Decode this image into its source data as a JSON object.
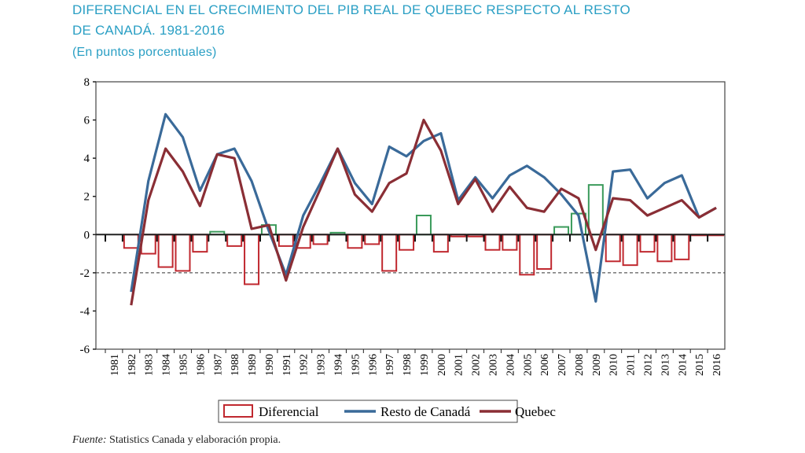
{
  "title_line1": "DIFERENCIAL EN EL CRECIMIENTO DEL PIB REAL DE QUEBEC RESPECTO AL RESTO",
  "title_line2": "DE CANADÁ. 1981-2016",
  "subtitle": "(En puntos porcentuales)",
  "source_label": "Fuente:",
  "source_text": " Statistics Canada y elaboración propia.",
  "chart_data": {
    "type": "line+bar",
    "categories": [
      "1981",
      "1982",
      "1983",
      "1984",
      "1985",
      "1986",
      "1987",
      "1988",
      "1989",
      "1990",
      "1991",
      "1992",
      "1993",
      "1994",
      "1995",
      "1996",
      "1997",
      "1998",
      "1999",
      "2000",
      "2001",
      "2002",
      "2003",
      "2004",
      "2005",
      "2006",
      "2007",
      "2008",
      "2009",
      "2010",
      "2011",
      "2012",
      "2013",
      "2014",
      "2015",
      "2016"
    ],
    "ylim": [
      -6,
      8
    ],
    "yticks": [
      -6,
      -4,
      -2,
      0,
      2,
      4,
      6,
      8
    ],
    "reference_line": -2,
    "legend_position": "bottom",
    "series": [
      {
        "name": "Diferencial",
        "type": "bar",
        "color": "#c0282f",
        "positive_color": "#3a9a5a",
        "values": [
          null,
          -0.7,
          -1.0,
          -1.7,
          -1.9,
          -0.9,
          0.15,
          -0.6,
          -2.6,
          0.5,
          -0.6,
          -0.7,
          -0.5,
          0.1,
          -0.7,
          -0.5,
          -1.9,
          -0.8,
          1.0,
          -0.9,
          -0.1,
          -0.1,
          -0.8,
          -0.8,
          -2.1,
          -1.8,
          0.4,
          1.1,
          2.6,
          -1.4,
          -1.6,
          -0.9,
          -1.4,
          -1.3,
          0,
          0
        ]
      },
      {
        "name": "Resto de Canadá",
        "type": "line",
        "color": "#3a6a99",
        "values": [
          null,
          -3.0,
          2.8,
          6.3,
          5.1,
          2.3,
          4.2,
          4.5,
          2.8,
          0.2,
          -2.1,
          1.0,
          2.7,
          4.5,
          2.7,
          1.6,
          4.6,
          4.1,
          4.9,
          5.3,
          1.8,
          3.0,
          1.9,
          3.1,
          3.6,
          3.0,
          2.1,
          1.0,
          -3.5,
          3.3,
          3.4,
          1.9,
          2.7,
          3.1,
          0.9,
          1.4
        ]
      },
      {
        "name": "Quebec",
        "type": "line",
        "color": "#8a2e35",
        "values": [
          null,
          -3.7,
          1.8,
          4.5,
          3.3,
          1.5,
          4.2,
          4.0,
          0.3,
          0.5,
          -2.4,
          0.4,
          2.4,
          4.5,
          2.1,
          1.2,
          2.7,
          3.2,
          6.0,
          4.4,
          1.6,
          2.9,
          1.2,
          2.5,
          1.4,
          1.2,
          2.4,
          1.9,
          -0.8,
          1.9,
          1.8,
          1.0,
          1.4,
          1.8,
          0.9,
          1.4
        ]
      }
    ]
  }
}
